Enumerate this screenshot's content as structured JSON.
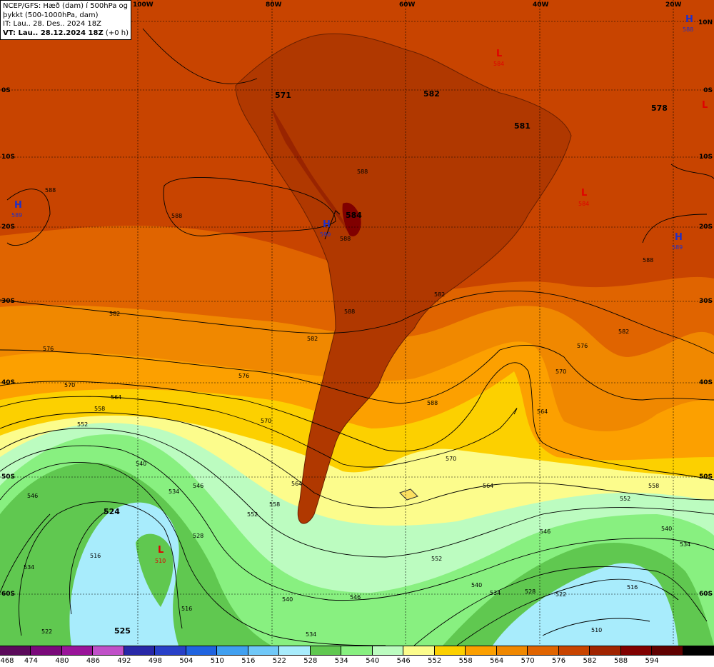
{
  "info": {
    "line1": "NCEP/GFS: Hæð (dam) í 500hPa og",
    "line2": "þykkt (500-1000hPa, dam)",
    "line3": "IT: Lau.. 28. Des.. 2024 18Z",
    "line4": "VT: Lau.. 28.12.2024 18Z",
    "line4b": "(+0 h)"
  },
  "longitudes": [
    "100W",
    "80W",
    "60W",
    "40W",
    "20W"
  ],
  "latitudes": [
    "10N",
    "0S",
    "10S",
    "20S",
    "30S",
    "40S",
    "50S",
    "60S"
  ],
  "legend": {
    "colors": [
      "#5a0a5a",
      "#7a0a7a",
      "#9a149a",
      "#c050c8",
      "#2828a8",
      "#2840c8",
      "#2064e0",
      "#40a0f0",
      "#70c8f8",
      "#a8ecfc",
      "#60c850",
      "#88f080",
      "#bcfcc0",
      "#fcfc8c",
      "#fcd000",
      "#fca000",
      "#f08800",
      "#e06400",
      "#c84400",
      "#a02400",
      "#800000",
      "#600000",
      "#000000"
    ],
    "labels": [
      "468",
      "474",
      "480",
      "486",
      "492",
      "498",
      "504",
      "510",
      "516",
      "522",
      "528",
      "534",
      "540",
      "546",
      "552",
      "558",
      "564",
      "570",
      "576",
      "582",
      "588",
      "594"
    ]
  },
  "systems": [
    {
      "type": "H",
      "value": "588",
      "color": "#2030c8"
    },
    {
      "type": "L",
      "value": "584",
      "color": "#e00000"
    },
    {
      "type": "L",
      "value": "",
      "color": "#e00000"
    },
    {
      "type": "H",
      "value": "589",
      "color": "#2030c8"
    },
    {
      "type": "H",
      "value": "590",
      "color": "#2030c8"
    },
    {
      "type": "L",
      "value": "584",
      "color": "#e00000"
    },
    {
      "type": "H",
      "value": "589",
      "color": "#2030c8"
    },
    {
      "type": "L",
      "value": "510",
      "color": "#e00000"
    }
  ],
  "thickness_labels": [
    "571",
    "582",
    "578",
    "581",
    "584",
    "524",
    "525"
  ],
  "contour_labels": [
    "588",
    "588",
    "588",
    "588",
    "582",
    "582",
    "582",
    "582",
    "576",
    "576",
    "576",
    "570",
    "570",
    "570",
    "570",
    "564",
    "564",
    "564",
    "564",
    "558",
    "558",
    "558",
    "552",
    "552",
    "552",
    "552",
    "546",
    "546",
    "546",
    "546",
    "540",
    "540",
    "540",
    "540",
    "534",
    "534",
    "534",
    "534",
    "534",
    "528",
    "528",
    "522",
    "522",
    "516",
    "516",
    "516",
    "510",
    "588",
    "588",
    "588"
  ]
}
